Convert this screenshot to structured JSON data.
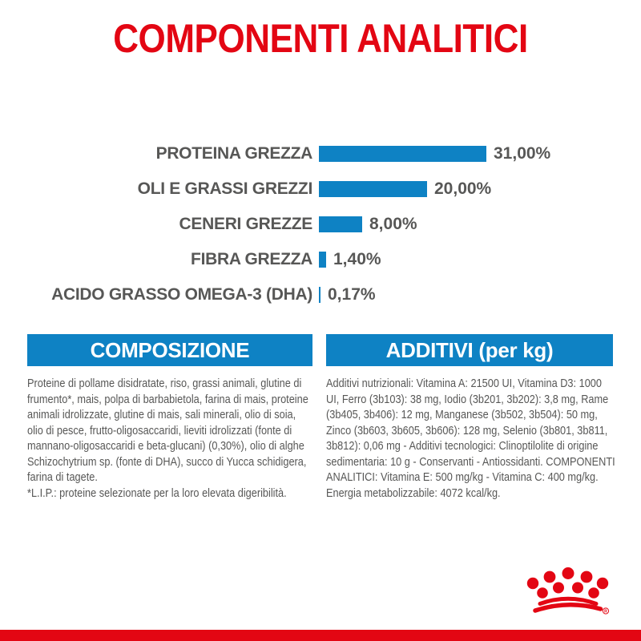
{
  "colors": {
    "brand_red": "#e30613",
    "brand_blue": "#0e82c4",
    "text_gray": "#575756",
    "background": "#ffffff"
  },
  "title": "COMPONENTI ANALITICI",
  "chart_data": {
    "type": "bar",
    "orientation": "horizontal",
    "title": "COMPONENTI ANALITICI",
    "categories": [
      "PROTEINA GREZZA",
      "OLI E GRASSI GREZZI",
      "CENERI GREZZE",
      "FIBRA GREZZA",
      "ACIDO GRASSO OMEGA-3 (DHA)"
    ],
    "values": [
      31.0,
      20.0,
      8.0,
      1.4,
      0.17
    ],
    "value_labels": [
      "31,00%",
      "20,00%",
      "8,00%",
      "1,40%",
      "0,17%"
    ],
    "unit": "%",
    "xlim": [
      0,
      31
    ],
    "bar_color": "#0e82c4",
    "grid": false,
    "legend": false
  },
  "sections": {
    "composition": {
      "header": "COMPOSIZIONE",
      "body": "Proteine di pollame disidratate, riso, grassi animali, glutine di frumento*, mais, polpa di barbabietola, farina di mais, proteine animali idrolizzate, glutine di mais, sali minerali, olio di soia, olio di pesce, frutto-oligosaccaridi, lieviti idrolizzati (fonte di mannano-oligosaccaridi e beta-glucani) (0,30%), olio di alghe Schizochytrium sp. (fonte di DHA), succo di Yucca schidigera, farina di tagete.",
      "footnote": "*L.I.P.: proteine selezionate per la loro elevata digeribilità."
    },
    "additives": {
      "header": "ADDITIVI (per kg)",
      "body": "Additivi nutrizionali: Vitamina A: 21500 UI, Vitamina D3: 1000 UI, Ferro (3b103): 38 mg, Iodio (3b201, 3b202): 3,8 mg, Rame (3b405, 3b406): 12 mg, Manganese (3b502, 3b504): 50 mg, Zinco (3b603, 3b605, 3b606): 128 mg, Selenio (3b801, 3b811, 3b812): 0,06 mg - Additivi tecnologici: Clinoptilolite di origine sedimentaria: 10 g - Conservanti - Antiossidanti. COMPONENTI ANALITICI: Vitamina E: 500 mg/kg - Vitamina C: 400 mg/kg. Energia metabolizzabile: 4072 kcal/kg."
    }
  },
  "footer": {
    "logo_name": "royal-canin-crown",
    "registered_mark": "R"
  }
}
